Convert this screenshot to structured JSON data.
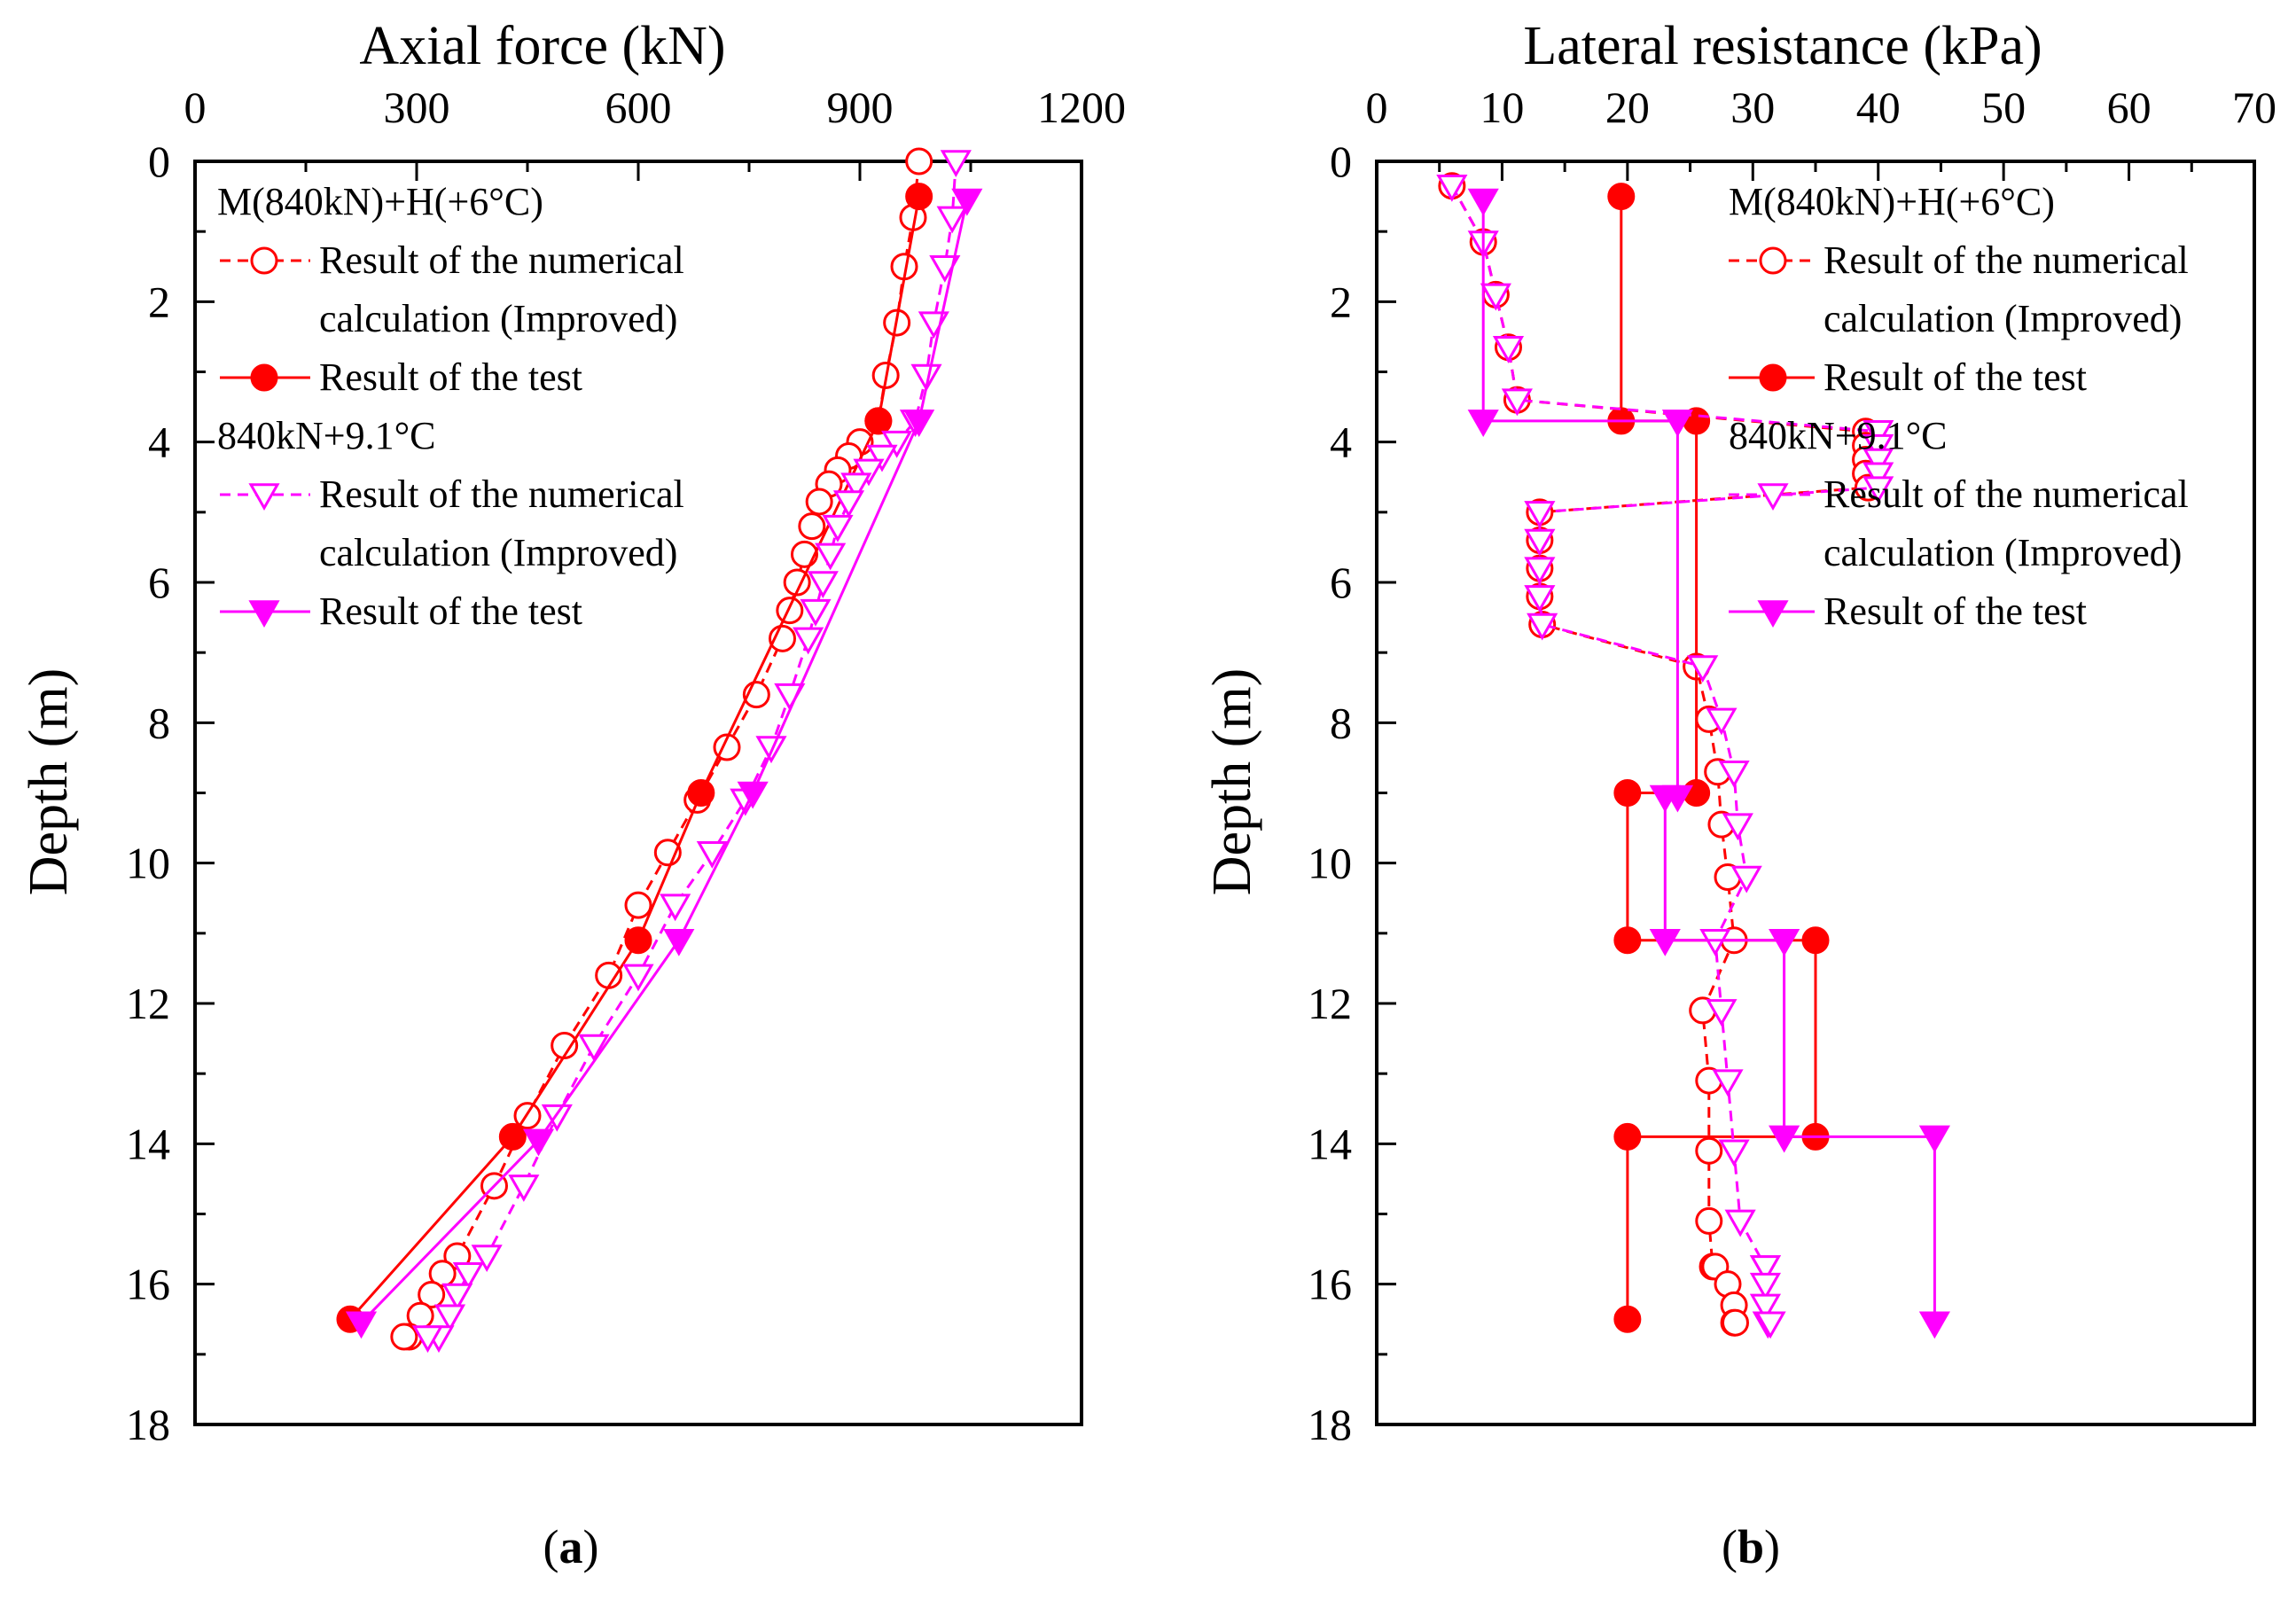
{
  "chart_data": [
    {
      "type": "line",
      "panel": "a",
      "caption": {
        "open": "(",
        "letter": "a",
        "close": ")"
      },
      "title": "Axial force (kN)",
      "xlabel": "Axial force (kN)",
      "ylabel": "Depth (m)",
      "xlim": [
        0,
        1200
      ],
      "ylim": [
        18,
        0
      ],
      "xticks": [
        0,
        300,
        600,
        900,
        1200
      ],
      "yticks": [
        0,
        2,
        4,
        6,
        8,
        10,
        12,
        14,
        16,
        18
      ],
      "legend": [
        {
          "kind": "header",
          "text": "M(840kN)+H(+6°C)"
        },
        {
          "kind": "entry",
          "series": 0,
          "lines": [
            "Result of the numerical",
            "calculation (Improved)"
          ]
        },
        {
          "kind": "entry",
          "series": 1,
          "lines": [
            "Result of the test"
          ]
        },
        {
          "kind": "header",
          "text": "840kN+9.1°C"
        },
        {
          "kind": "entry",
          "series": 2,
          "lines": [
            "Result of the numerical",
            "calculation (Improved)"
          ]
        },
        {
          "kind": "entry",
          "series": 3,
          "lines": [
            "Result of the test"
          ]
        }
      ],
      "series": [
        {
          "name": "M(840kN)+H(+6°C) Result of the numerical calculation (Improved)",
          "color": "#ff0000",
          "marker": "circle-open",
          "dash": true,
          "x": [
            980,
            972,
            960,
            950,
            935,
            925,
            900,
            885,
            870,
            858,
            845,
            835,
            825,
            815,
            805,
            795,
            760,
            720,
            680,
            640,
            600,
            560,
            500,
            450,
            405,
            355,
            335,
            320,
            305,
            290,
            283
          ],
          "y": [
            0,
            0.8,
            1.5,
            2.3,
            3.05,
            3.7,
            4.0,
            4.2,
            4.4,
            4.6,
            4.85,
            5.2,
            5.6,
            6.0,
            6.4,
            6.8,
            7.6,
            8.35,
            9.1,
            9.85,
            10.6,
            11.6,
            12.6,
            13.6,
            14.6,
            15.6,
            15.85,
            16.15,
            16.45,
            16.75,
            16.75
          ]
        },
        {
          "name": "M(840kN)+H(+6°C) Result of the test",
          "color": "#ff0000",
          "marker": "circle-filled",
          "dash": false,
          "x": [
            980,
            925,
            685,
            600,
            430,
            210
          ],
          "y": [
            0.5,
            3.7,
            9.0,
            11.1,
            13.9,
            16.5
          ]
        },
        {
          "name": "840kN+9.1°C Result of the numerical calculation (Improved)",
          "color": "#ff00ff",
          "marker": "triangle-open",
          "dash": true,
          "x": [
            1030,
            1025,
            1015,
            1000,
            990,
            975,
            950,
            930,
            912,
            895,
            885,
            870,
            860,
            850,
            840,
            830,
            805,
            780,
            745,
            700,
            650,
            600,
            540,
            490,
            445,
            395,
            370,
            355,
            345,
            330,
            315
          ],
          "y": [
            0,
            0.8,
            1.5,
            2.3,
            3.05,
            3.7,
            4.0,
            4.2,
            4.4,
            4.6,
            4.85,
            5.2,
            5.6,
            6.0,
            6.4,
            6.8,
            7.6,
            8.35,
            9.1,
            9.85,
            10.6,
            11.6,
            12.6,
            13.6,
            14.6,
            15.6,
            15.85,
            16.15,
            16.45,
            16.75,
            16.75
          ]
        },
        {
          "name": "840kN+9.1°C Result of the test",
          "color": "#ff00ff",
          "marker": "triangle-filled",
          "dash": false,
          "x": [
            1045,
            980,
            755,
            655,
            465,
            225
          ],
          "y": [
            0.55,
            3.7,
            9.0,
            11.1,
            13.95,
            16.55
          ]
        }
      ]
    },
    {
      "type": "line",
      "panel": "b",
      "caption": {
        "open": "(",
        "letter": "b",
        "close": ")"
      },
      "title": "Lateral resistance (kPa)",
      "xlabel": "Lateral resistance (kPa)",
      "ylabel": "Depth (m)",
      "xlim": [
        0,
        70
      ],
      "ylim": [
        18,
        0
      ],
      "xticks": [
        0,
        10,
        20,
        30,
        40,
        50,
        60,
        70
      ],
      "yticks": [
        0,
        2,
        4,
        6,
        8,
        10,
        12,
        14,
        16,
        18
      ],
      "legend": [
        {
          "kind": "header",
          "text": "M(840kN)+H(+6°C)"
        },
        {
          "kind": "entry",
          "series": 0,
          "lines": [
            "Result of the numerical",
            "calculation (Improved)"
          ]
        },
        {
          "kind": "entry",
          "series": 1,
          "lines": [
            "Result of the test"
          ]
        },
        {
          "kind": "header",
          "text": "840kN+9.1°C"
        },
        {
          "kind": "entry",
          "series": 2,
          "lines": [
            "Result of the numerical",
            "calculation (Improved)"
          ]
        },
        {
          "kind": "entry",
          "series": 3,
          "lines": [
            "Result of the test"
          ]
        }
      ],
      "series": [
        {
          "name": "M(840kN)+H(+6°C) Result of the numerical calculation (Improved)",
          "color": "#ff0000",
          "marker": "circle-open",
          "dash": true,
          "x": [
            6,
            8.5,
            9.5,
            10.5,
            11.2,
            39,
            39,
            39,
            39,
            39.2,
            13,
            13,
            13,
            13,
            13.2,
            25.5,
            26.5,
            27.2,
            27.5,
            28,
            28.5,
            26,
            26.5,
            26.5,
            26.5,
            26.8,
            27,
            28,
            28.5,
            28.5,
            28.6
          ],
          "y": [
            0.35,
            1.15,
            1.9,
            2.65,
            3.4,
            3.85,
            4.05,
            4.25,
            4.45,
            4.65,
            5.0,
            5.4,
            5.8,
            6.2,
            6.6,
            7.2,
            7.95,
            8.7,
            9.45,
            10.2,
            11.1,
            12.1,
            13.1,
            14.1,
            15.1,
            15.75,
            15.75,
            16.0,
            16.3,
            16.55,
            16.55
          ]
        },
        {
          "name": "M(840kN)+H(+6°C) Result of the test",
          "color": "#ff0000",
          "marker": "circle-filled",
          "dash": false,
          "x": [
            19.5,
            19.5,
            25.5,
            25.5,
            20,
            20,
            35,
            35,
            20,
            20
          ],
          "y": [
            0.5,
            3.7,
            3.7,
            9.0,
            9.0,
            11.1,
            11.1,
            13.9,
            13.9,
            16.5
          ]
        },
        {
          "name": "840kN+9.1°C Result of the numerical calculation (Improved)",
          "color": "#ff00ff",
          "marker": "triangle-open",
          "dash": true,
          "x": [
            6,
            8.5,
            9.5,
            10.5,
            11.2,
            40,
            40,
            40,
            40,
            40,
            13,
            13,
            13,
            13,
            13.2,
            26,
            27.5,
            28.5,
            28.8,
            29.5,
            27,
            27.5,
            28,
            28.5,
            29,
            31,
            31,
            31,
            31,
            31.2,
            31.4
          ],
          "y": [
            0.35,
            1.15,
            1.9,
            2.65,
            3.4,
            3.85,
            4.05,
            4.25,
            4.45,
            4.65,
            5.0,
            5.4,
            5.8,
            6.2,
            6.6,
            7.2,
            7.95,
            8.7,
            9.45,
            10.2,
            11.1,
            12.1,
            13.1,
            14.1,
            15.1,
            15.75,
            15.75,
            16.0,
            16.3,
            16.55,
            16.55
          ]
        },
        {
          "name": "840kN+9.1°C Result of the test",
          "color": "#ff00ff",
          "marker": "triangle-filled",
          "dash": false,
          "x": [
            8.5,
            8.5,
            24,
            24,
            23,
            23,
            32.5,
            32.5,
            44.5,
            44.5
          ],
          "y": [
            0.55,
            3.7,
            3.7,
            9.05,
            9.05,
            11.1,
            11.1,
            13.9,
            13.9,
            16.55
          ]
        }
      ]
    }
  ]
}
